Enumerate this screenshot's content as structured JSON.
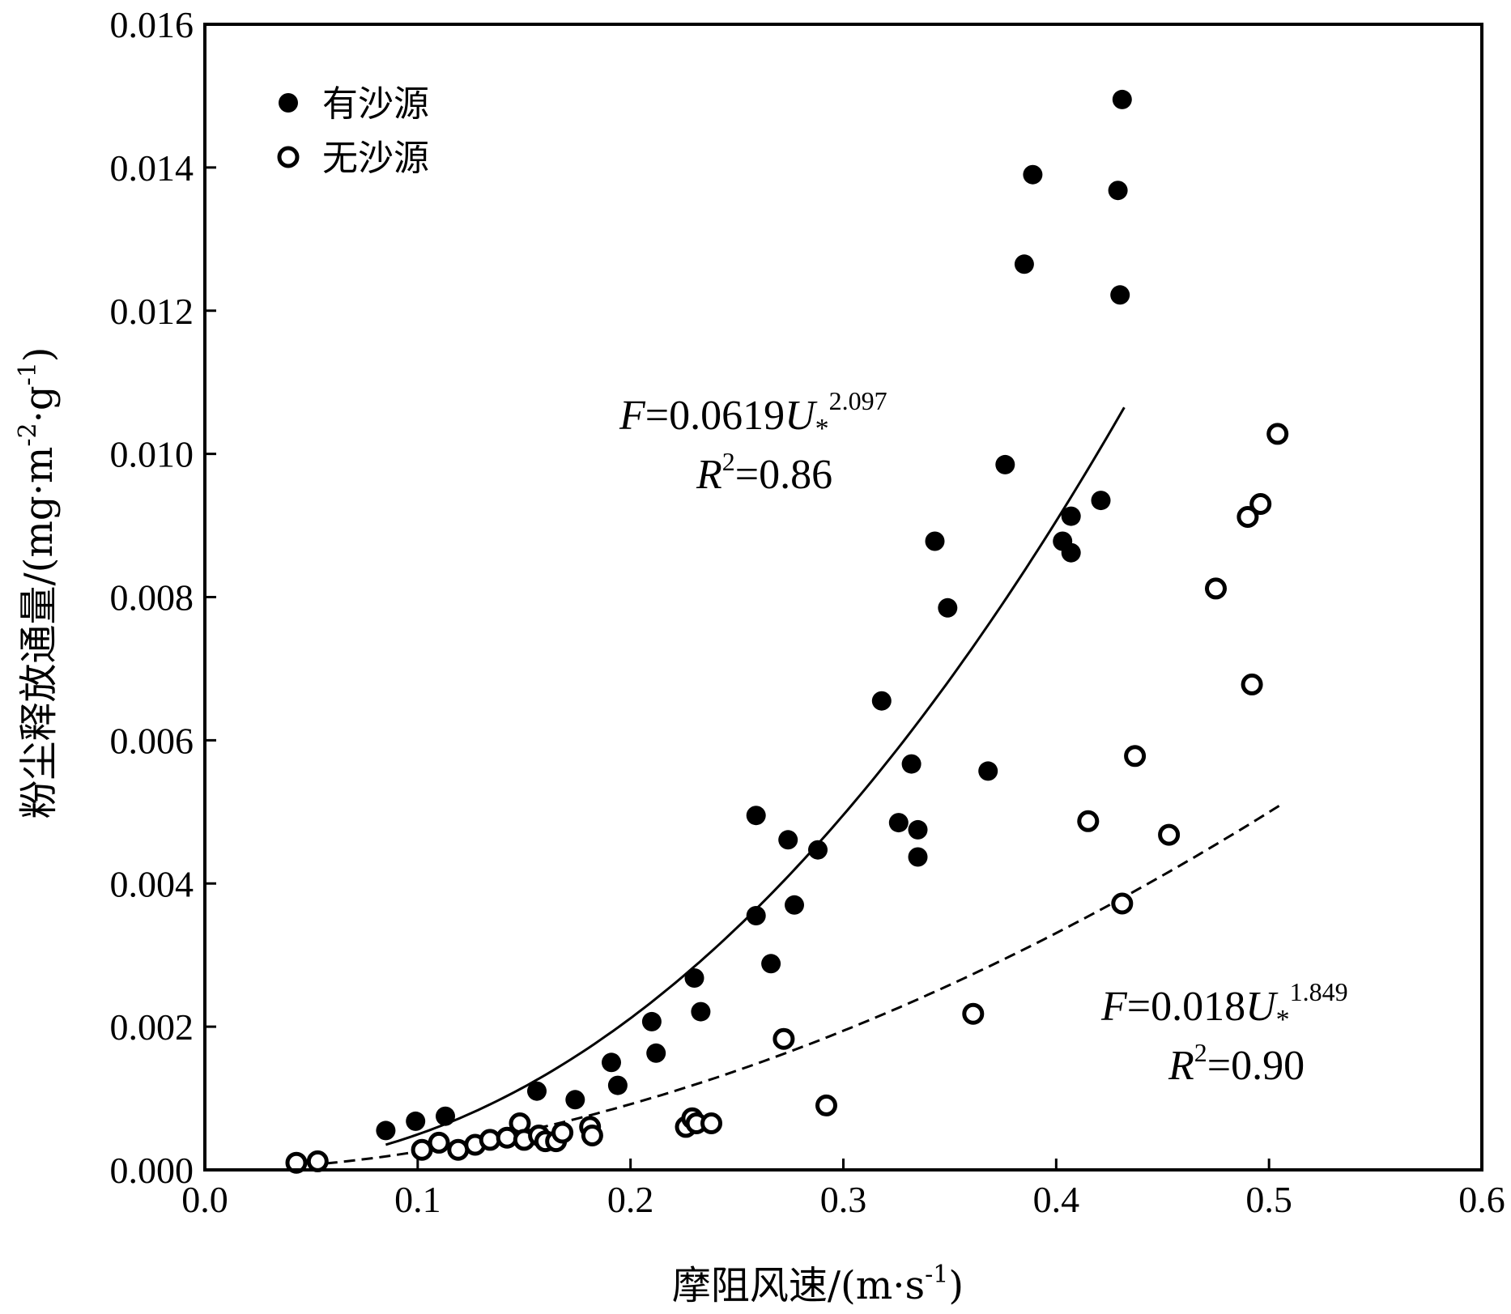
{
  "chart_data": {
    "type": "scatter",
    "xlabel": "摩阻风速/(m·s",
    "xlabel_sup": "-1",
    "xlabel_end": ")",
    "ylabel": "粉尘释放通量/(mg·m",
    "ylabel_sup1": "-2",
    "ylabel_mid": "·g",
    "ylabel_sup2": "-1",
    "ylabel_end": ")",
    "xlim": [
      0.0,
      0.6
    ],
    "ylim": [
      0.0,
      0.016
    ],
    "x_ticks": [
      "0.0",
      "0.1",
      "0.2",
      "0.3",
      "0.4",
      "0.5",
      "0.6"
    ],
    "y_ticks": [
      "0.000",
      "0.002",
      "0.004",
      "0.006",
      "0.008",
      "0.010",
      "0.012",
      "0.014",
      "0.016"
    ],
    "legend_position": "top-left",
    "series": [
      {
        "name": "有沙源",
        "marker": "filled-circle",
        "fit": {
          "a": 0.0619,
          "b": 2.097,
          "x_range": [
            0.085,
            0.432
          ],
          "line": "solid",
          "eq_var": "F",
          "eq_rhs": "=0.0619",
          "eq_u": "U",
          "eq_sub": "*",
          "eq_exp": "2.097",
          "r2_var": "R",
          "r2_sup": "2",
          "r2_rhs": "=0.86"
        },
        "points": [
          [
            0.085,
            0.00055
          ],
          [
            0.099,
            0.00068
          ],
          [
            0.113,
            0.00075
          ],
          [
            0.156,
            0.0011
          ],
          [
            0.174,
            0.00098
          ],
          [
            0.191,
            0.0015
          ],
          [
            0.194,
            0.00118
          ],
          [
            0.21,
            0.00207
          ],
          [
            0.212,
            0.00163
          ],
          [
            0.23,
            0.00268
          ],
          [
            0.233,
            0.00221
          ],
          [
            0.259,
            0.00355
          ],
          [
            0.266,
            0.00288
          ],
          [
            0.259,
            0.00495
          ],
          [
            0.274,
            0.00461
          ],
          [
            0.277,
            0.0037
          ],
          [
            0.288,
            0.00447
          ],
          [
            0.318,
            0.00655
          ],
          [
            0.326,
            0.00485
          ],
          [
            0.332,
            0.00567
          ],
          [
            0.335,
            0.00475
          ],
          [
            0.335,
            0.00437
          ],
          [
            0.343,
            0.00878
          ],
          [
            0.349,
            0.00785
          ],
          [
            0.368,
            0.00557
          ],
          [
            0.376,
            0.00985
          ],
          [
            0.385,
            0.01265
          ],
          [
            0.389,
            0.0139
          ],
          [
            0.403,
            0.00878
          ],
          [
            0.407,
            0.00913
          ],
          [
            0.407,
            0.00862
          ],
          [
            0.421,
            0.00935
          ],
          [
            0.429,
            0.01368
          ],
          [
            0.43,
            0.01222
          ],
          [
            0.431,
            0.01495
          ]
        ]
      },
      {
        "name": "无沙源",
        "marker": "open-circle",
        "fit": {
          "a": 0.018,
          "b": 1.849,
          "x_range": [
            0.057,
            0.506
          ],
          "line": "dashed",
          "eq_var": "F",
          "eq_rhs": "=0.018",
          "eq_u": "U",
          "eq_sub": "*",
          "eq_exp": "1.849",
          "r2_var": "R",
          "r2_sup": "2",
          "r2_rhs": "=0.90"
        },
        "points": [
          [
            0.043,
            0.0001
          ],
          [
            0.053,
            0.00012
          ],
          [
            0.102,
            0.00028
          ],
          [
            0.11,
            0.00038
          ],
          [
            0.119,
            0.00028
          ],
          [
            0.127,
            0.00035
          ],
          [
            0.134,
            0.00042
          ],
          [
            0.142,
            0.00045
          ],
          [
            0.148,
            0.00065
          ],
          [
            0.15,
            0.00042
          ],
          [
            0.157,
            0.00048
          ],
          [
            0.16,
            0.0004
          ],
          [
            0.165,
            0.0004
          ],
          [
            0.168,
            0.00052
          ],
          [
            0.181,
            0.0006
          ],
          [
            0.182,
            0.00048
          ],
          [
            0.226,
            0.0006
          ],
          [
            0.229,
            0.00072
          ],
          [
            0.231,
            0.00065
          ],
          [
            0.238,
            0.00065
          ],
          [
            0.272,
            0.00183
          ],
          [
            0.292,
            0.0009
          ],
          [
            0.361,
            0.00218
          ],
          [
            0.415,
            0.00487
          ],
          [
            0.431,
            0.00372
          ],
          [
            0.437,
            0.00578
          ],
          [
            0.453,
            0.00468
          ],
          [
            0.475,
            0.00812
          ],
          [
            0.49,
            0.00912
          ],
          [
            0.492,
            0.00678
          ],
          [
            0.496,
            0.0093
          ],
          [
            0.504,
            0.01028
          ]
        ]
      }
    ]
  }
}
